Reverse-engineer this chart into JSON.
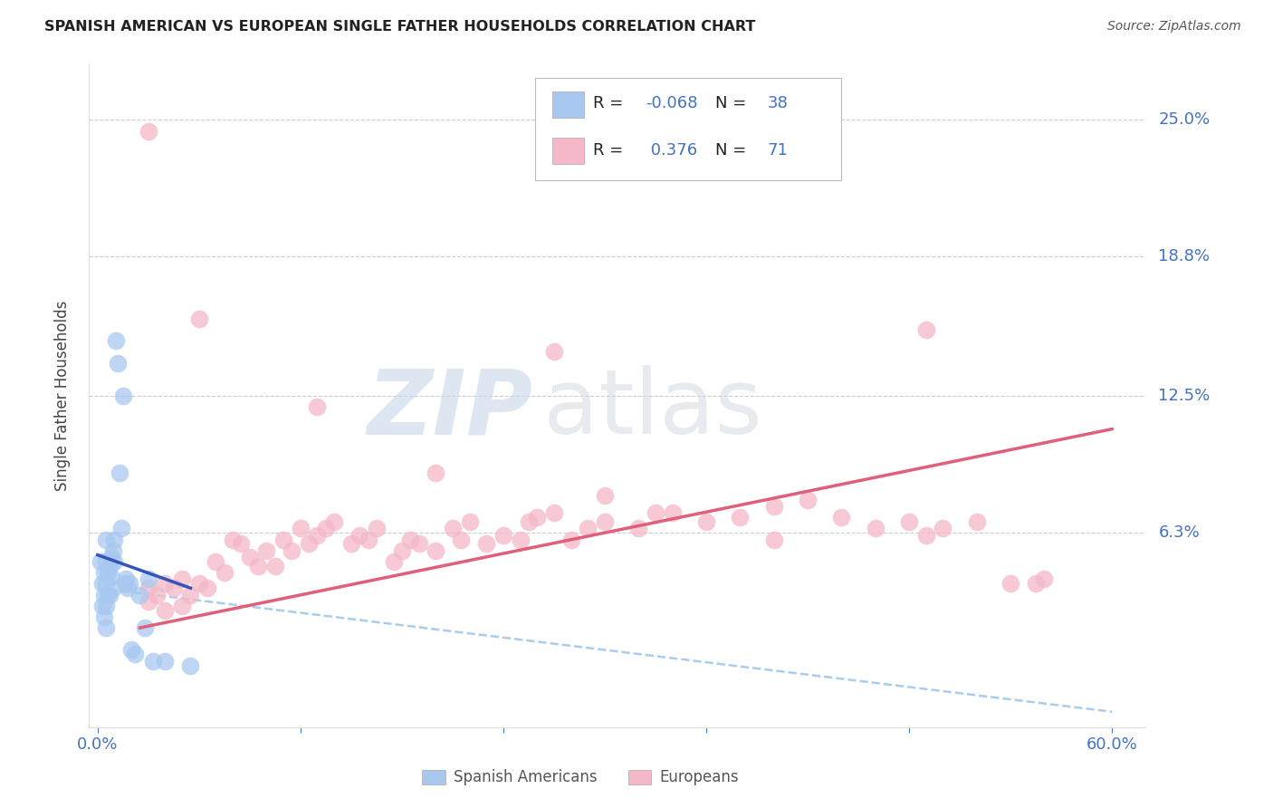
{
  "title": "SPANISH AMERICAN VS EUROPEAN SINGLE FATHER HOUSEHOLDS CORRELATION CHART",
  "source": "Source: ZipAtlas.com",
  "ylabel": "Single Father Households",
  "ytick_labels": [
    "25.0%",
    "18.8%",
    "12.5%",
    "6.3%"
  ],
  "ytick_values": [
    0.25,
    0.188,
    0.125,
    0.063
  ],
  "xlim": [
    -0.005,
    0.62
  ],
  "ylim": [
    -0.025,
    0.275
  ],
  "watermark_zip": "ZIP",
  "watermark_atlas": "atlas",
  "blue_color": "#A8C8F0",
  "pink_color": "#F4B8C8",
  "blue_line_color": "#3355BB",
  "pink_line_color": "#E0607A",
  "dashed_line_color": "#AACCEE",
  "blue_r": "-0.068",
  "blue_n": "38",
  "pink_r": "0.376",
  "pink_n": "71",
  "spanish_americans_x": [
    0.002,
    0.003,
    0.003,
    0.004,
    0.004,
    0.004,
    0.005,
    0.005,
    0.005,
    0.005,
    0.005,
    0.006,
    0.006,
    0.007,
    0.007,
    0.008,
    0.008,
    0.009,
    0.009,
    0.01,
    0.01,
    0.011,
    0.012,
    0.013,
    0.014,
    0.015,
    0.016,
    0.017,
    0.018,
    0.019,
    0.02,
    0.022,
    0.025,
    0.028,
    0.03,
    0.033,
    0.04,
    0.055
  ],
  "spanish_americans_y": [
    0.05,
    0.03,
    0.04,
    0.025,
    0.035,
    0.045,
    0.02,
    0.03,
    0.04,
    0.05,
    0.06,
    0.035,
    0.045,
    0.035,
    0.048,
    0.052,
    0.043,
    0.038,
    0.055,
    0.05,
    0.06,
    0.15,
    0.14,
    0.09,
    0.065,
    0.125,
    0.04,
    0.042,
    0.038,
    0.04,
    0.01,
    0.008,
    0.035,
    0.02,
    0.042,
    0.005,
    0.005,
    0.003
  ],
  "europeans_x": [
    0.03,
    0.03,
    0.035,
    0.04,
    0.04,
    0.045,
    0.05,
    0.05,
    0.055,
    0.06,
    0.065,
    0.07,
    0.075,
    0.08,
    0.085,
    0.09,
    0.095,
    0.1,
    0.105,
    0.11,
    0.115,
    0.12,
    0.125,
    0.13,
    0.135,
    0.14,
    0.15,
    0.155,
    0.16,
    0.165,
    0.175,
    0.18,
    0.185,
    0.19,
    0.2,
    0.21,
    0.215,
    0.22,
    0.23,
    0.24,
    0.25,
    0.255,
    0.26,
    0.27,
    0.28,
    0.29,
    0.3,
    0.32,
    0.34,
    0.36,
    0.38,
    0.4,
    0.42,
    0.44,
    0.46,
    0.48,
    0.49,
    0.5,
    0.52,
    0.54,
    0.555,
    0.56,
    0.27,
    0.13,
    0.2,
    0.3,
    0.4,
    0.49,
    0.03,
    0.06,
    0.33
  ],
  "europeans_y": [
    0.038,
    0.032,
    0.035,
    0.04,
    0.028,
    0.038,
    0.03,
    0.042,
    0.035,
    0.04,
    0.038,
    0.05,
    0.045,
    0.06,
    0.058,
    0.052,
    0.048,
    0.055,
    0.048,
    0.06,
    0.055,
    0.065,
    0.058,
    0.062,
    0.065,
    0.068,
    0.058,
    0.062,
    0.06,
    0.065,
    0.05,
    0.055,
    0.06,
    0.058,
    0.055,
    0.065,
    0.06,
    0.068,
    0.058,
    0.062,
    0.06,
    0.068,
    0.07,
    0.072,
    0.06,
    0.065,
    0.068,
    0.065,
    0.072,
    0.068,
    0.07,
    0.075,
    0.078,
    0.07,
    0.065,
    0.068,
    0.062,
    0.065,
    0.068,
    0.04,
    0.04,
    0.042,
    0.145,
    0.12,
    0.09,
    0.08,
    0.06,
    0.155,
    0.245,
    0.16,
    0.072
  ],
  "blue_line_x": [
    0.0,
    0.055
  ],
  "blue_line_y": [
    0.053,
    0.038
  ],
  "pink_line_x": [
    0.025,
    0.6
  ],
  "pink_line_y": [
    0.02,
    0.11
  ],
  "dash_line_x": [
    0.0,
    0.6
  ],
  "dash_line_y": [
    0.038,
    -0.018
  ]
}
